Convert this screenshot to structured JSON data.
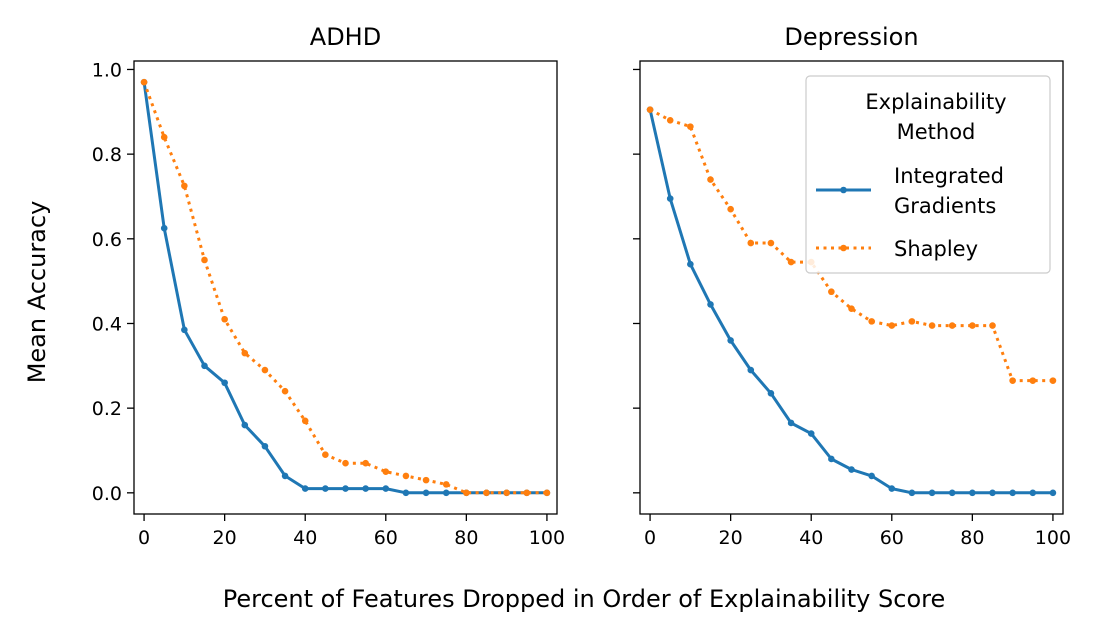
{
  "chart_data": {
    "type": "line",
    "shared_xlabel": "Percent of Features Dropped in Order of Explainability Score",
    "shared_ylabel": "Mean Accuracy",
    "x": [
      0,
      5,
      10,
      15,
      20,
      25,
      30,
      35,
      40,
      45,
      50,
      55,
      60,
      65,
      70,
      75,
      80,
      85,
      90,
      95,
      100
    ],
    "xlim": [
      -2.5,
      102.5
    ],
    "ylim": [
      -0.05,
      1.02
    ],
    "xticks": [
      0,
      20,
      40,
      60,
      80,
      100
    ],
    "yticks": [
      0.0,
      0.2,
      0.4,
      0.6,
      0.8,
      1.0
    ],
    "legend": {
      "title": "Explainability\nMethod",
      "entries": [
        "Integrated\nGradients",
        "Shapley"
      ],
      "placement": "top-right of Depression panel"
    },
    "panels": [
      {
        "title": "ADHD",
        "series": [
          {
            "name": "Integrated Gradients",
            "color": "#1f77b4",
            "style": "solid",
            "values": [
              0.97,
              0.625,
              0.385,
              0.3,
              0.26,
              0.16,
              0.11,
              0.04,
              0.01,
              0.01,
              0.01,
              0.01,
              0.01,
              0.0,
              0.0,
              0.0,
              0.0,
              0.0,
              0.0,
              0.0,
              0.0
            ]
          },
          {
            "name": "Shapley",
            "color": "#ff7f0e",
            "style": "dotted",
            "values": [
              0.97,
              0.84,
              0.725,
              0.55,
              0.41,
              0.33,
              0.29,
              0.24,
              0.17,
              0.09,
              0.07,
              0.07,
              0.05,
              0.04,
              0.03,
              0.02,
              0.0,
              0.0,
              0.0,
              0.0,
              0.0
            ]
          }
        ]
      },
      {
        "title": "Depression",
        "series": [
          {
            "name": "Integrated Gradients",
            "color": "#1f77b4",
            "style": "solid",
            "values": [
              0.905,
              0.695,
              0.54,
              0.445,
              0.36,
              0.29,
              0.235,
              0.165,
              0.14,
              0.08,
              0.055,
              0.04,
              0.01,
              0.0,
              0.0,
              0.0,
              0.0,
              0.0,
              0.0,
              0.0,
              0.0
            ]
          },
          {
            "name": "Shapley",
            "color": "#ff7f0e",
            "style": "dotted",
            "values": [
              0.905,
              0.88,
              0.865,
              0.74,
              0.67,
              0.59,
              0.59,
              0.545,
              0.545,
              0.475,
              0.435,
              0.405,
              0.395,
              0.405,
              0.395,
              0.395,
              0.395,
              0.395,
              0.265,
              0.265,
              0.265
            ]
          }
        ]
      }
    ]
  }
}
